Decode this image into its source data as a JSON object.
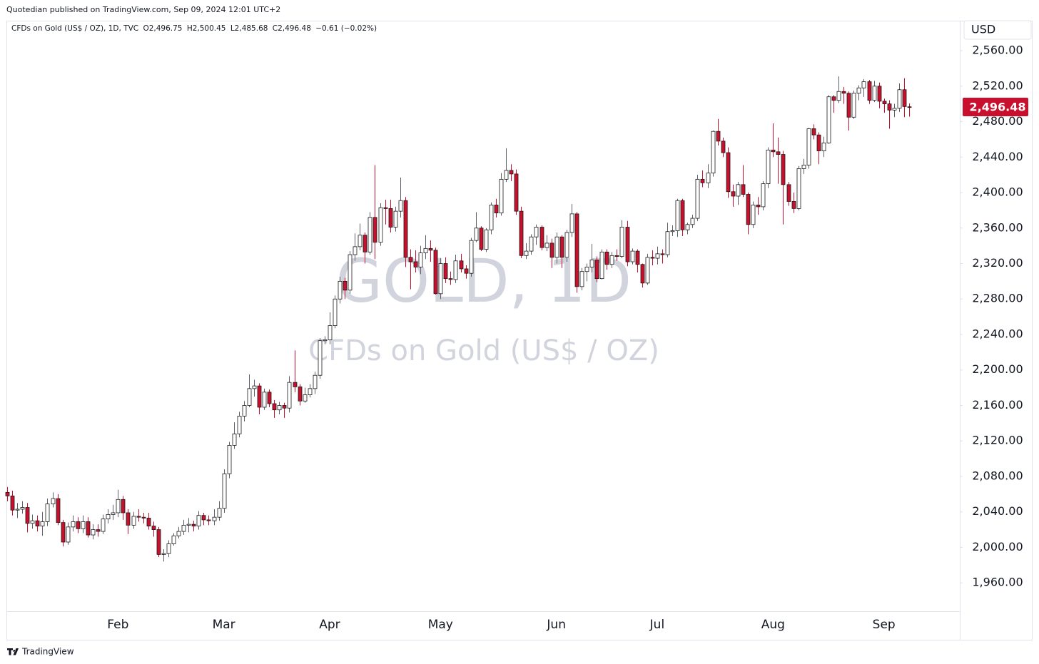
{
  "chart_data": {
    "type": "candlestick",
    "header": "Quotedian published on TradingView.com, Sep 09, 2024 12:01 UTC+2",
    "legend": {
      "symbol": "CFDs on Gold (US$ / OZ), 1D, TVC",
      "open": "O2,496.75",
      "high": "H2,500.45",
      "low": "L2,485.68",
      "close": "C2,496.48",
      "change": "−0.61 (−0.02%)"
    },
    "watermark": {
      "title": "GOLD, 1D",
      "subtitle": "CFDs on Gold (US$ / OZ)"
    },
    "currency": "USD",
    "last_price_label": "2,496.48",
    "footer": "TradingView",
    "up_color": "#ffffff",
    "down_color": "#c8102e",
    "border_color": "#1a1a1a",
    "wick_color": "#5d606b",
    "grid": false,
    "categories": [
      null,
      null,
      null,
      null,
      null,
      null,
      null,
      null,
      null,
      null,
      null,
      null,
      null,
      null,
      null,
      null,
      null,
      null,
      null,
      null,
      null,
      null,
      "Feb",
      null,
      null,
      null,
      null,
      null,
      null,
      null,
      null,
      null,
      null,
      null,
      null,
      null,
      null,
      null,
      null,
      null,
      null,
      null,
      null,
      "Mar",
      null,
      null,
      null,
      null,
      null,
      null,
      null,
      null,
      null,
      null,
      null,
      null,
      null,
      null,
      null,
      null,
      null,
      null,
      null,
      null,
      "Apr",
      null,
      null,
      null,
      null,
      null,
      null,
      null,
      null,
      null,
      null,
      null,
      null,
      null,
      null,
      null,
      null,
      null,
      null,
      null,
      null,
      null,
      "May",
      null,
      null,
      null,
      null,
      null,
      null,
      null,
      null,
      null,
      null,
      null,
      null,
      null,
      null,
      null,
      null,
      null,
      null,
      null,
      null,
      null,
      null,
      "Jun",
      null,
      null,
      null,
      null,
      null,
      null,
      null,
      null,
      null,
      null,
      null,
      null,
      null,
      null,
      null,
      null,
      null,
      null,
      null,
      "Jul",
      null,
      null,
      null,
      null,
      null,
      null,
      null,
      null,
      null,
      null,
      null,
      null,
      null,
      null,
      null,
      null,
      null,
      null,
      null,
      null,
      null,
      null,
      "Aug",
      null,
      null,
      null,
      null,
      null,
      null,
      null,
      null,
      null,
      null,
      null,
      null,
      null,
      null,
      null,
      null,
      null,
      null,
      null,
      null,
      null,
      "Sep",
      null,
      null,
      null,
      null,
      null
    ],
    "open": [
      2062,
      2058,
      2042,
      2043,
      2045,
      2027,
      2030,
      2024,
      2029,
      2049,
      2055,
      2028,
      2006,
      2023,
      2029,
      2021,
      2029,
      2014,
      2020,
      2018,
      2032,
      2037,
      2039,
      2054,
      2039,
      2025,
      2035,
      2034,
      2033,
      2024,
      2020,
      1992,
      1993,
      2004,
      2013,
      2018,
      2025,
      2026,
      2024,
      2036,
      2031,
      2030,
      2034,
      2044,
      2083,
      2115,
      2128,
      2148,
      2160,
      2179,
      2182,
      2158,
      2175,
      2162,
      2155,
      2160,
      2157,
      2186,
      2181,
      2165,
      2172,
      2179,
      2194,
      2233,
      2234,
      2250,
      2280,
      2300,
      2290,
      2330,
      2339,
      2352,
      2333,
      2372,
      2344,
      2383,
      2382,
      2361,
      2379,
      2391,
      2327,
      2322,
      2316,
      2332,
      2337,
      2335,
      2286,
      2320,
      2303,
      2302,
      2323,
      2314,
      2309,
      2346,
      2360,
      2336,
      2358,
      2386,
      2377,
      2415,
      2425,
      2421,
      2379,
      2329,
      2334,
      2350,
      2361,
      2338,
      2343,
      2327,
      2350,
      2327,
      2355,
      2376,
      2294,
      2311,
      2316,
      2324,
      2303,
      2333,
      2319,
      2329,
      2328,
      2361,
      2322,
      2334,
      2319,
      2298,
      2327,
      2326,
      2331,
      2330,
      2356,
      2357,
      2391,
      2358,
      2364,
      2371,
      2415,
      2411,
      2422,
      2469,
      2458,
      2445,
      2401,
      2396,
      2409,
      2398,
      2364,
      2386,
      2384,
      2410,
      2448,
      2446,
      2443,
      2409,
      2390,
      2382,
      2427,
      2431,
      2472,
      2465,
      2447,
      2456,
      2508,
      2504,
      2514,
      2512,
      2485,
      2512,
      2518,
      2525,
      2504,
      2520,
      2503,
      2500,
      2493,
      2495,
      2516,
      2496.75
    ],
    "high": [
      2068,
      2064,
      2050,
      2052,
      2050,
      2037,
      2036,
      2040,
      2055,
      2062,
      2060,
      2031,
      2028,
      2036,
      2034,
      2036,
      2034,
      2026,
      2026,
      2037,
      2043,
      2048,
      2065,
      2058,
      2043,
      2040,
      2043,
      2039,
      2039,
      2029,
      2023,
      1998,
      2008,
      2016,
      2023,
      2031,
      2033,
      2030,
      2041,
      2039,
      2036,
      2043,
      2052,
      2088,
      2119,
      2141,
      2153,
      2165,
      2195,
      2189,
      2185,
      2179,
      2178,
      2166,
      2164,
      2163,
      2193,
      2222,
      2184,
      2180,
      2184,
      2198,
      2236,
      2238,
      2265,
      2284,
      2305,
      2304,
      2334,
      2354,
      2365,
      2355,
      2378,
      2431,
      2388,
      2392,
      2392,
      2384,
      2417,
      2395,
      2336,
      2335,
      2340,
      2352,
      2346,
      2338,
      2326,
      2327,
      2311,
      2330,
      2331,
      2318,
      2349,
      2378,
      2362,
      2360,
      2389,
      2393,
      2422,
      2450,
      2432,
      2426,
      2384,
      2343,
      2353,
      2364,
      2363,
      2352,
      2348,
      2355,
      2352,
      2358,
      2387,
      2378,
      2315,
      2320,
      2342,
      2328,
      2336,
      2336,
      2333,
      2336,
      2369,
      2368,
      2337,
      2336,
      2320,
      2331,
      2335,
      2339,
      2336,
      2366,
      2363,
      2393,
      2393,
      2366,
      2375,
      2420,
      2425,
      2432,
      2470,
      2483,
      2462,
      2451,
      2409,
      2412,
      2431,
      2400,
      2390,
      2395,
      2413,
      2451,
      2478,
      2462,
      2447,
      2412,
      2400,
      2430,
      2438,
      2473,
      2477,
      2468,
      2463,
      2510,
      2510,
      2531,
      2519,
      2514,
      2515,
      2521,
      2528,
      2527,
      2526,
      2524,
      2506,
      2504,
      2500,
      2523,
      2529,
      2500.45
    ],
    "low": [
      2052,
      2036,
      2033,
      2038,
      2017,
      2021,
      2018,
      2013,
      2024,
      2045,
      2025,
      2001,
      2003,
      2018,
      2016,
      2016,
      2011,
      2009,
      2012,
      2015,
      2027,
      2031,
      2034,
      2031,
      2015,
      2021,
      2029,
      2027,
      2020,
      2012,
      1989,
      1984,
      1989,
      2002,
      2010,
      2014,
      2017,
      2018,
      2020,
      2025,
      2025,
      2025,
      2030,
      2039,
      2078,
      2111,
      2124,
      2142,
      2158,
      2170,
      2150,
      2155,
      2158,
      2146,
      2150,
      2146,
      2152,
      2175,
      2160,
      2163,
      2169,
      2173,
      2190,
      2229,
      2229,
      2247,
      2275,
      2280,
      2286,
      2323,
      2335,
      2320,
      2330,
      2325,
      2340,
      2364,
      2355,
      2356,
      2372,
      2316,
      2291,
      2310,
      2308,
      2325,
      2322,
      2285,
      2280,
      2298,
      2296,
      2298,
      2310,
      2303,
      2305,
      2344,
      2334,
      2333,
      2353,
      2372,
      2374,
      2412,
      2413,
      2375,
      2326,
      2325,
      2330,
      2341,
      2335,
      2334,
      2315,
      2320,
      2315,
      2322,
      2350,
      2287,
      2290,
      2300,
      2310,
      2299,
      2302,
      2313,
      2315,
      2323,
      2326,
      2317,
      2319,
      2310,
      2293,
      2296,
      2318,
      2319,
      2320,
      2327,
      2351,
      2350,
      2351,
      2353,
      2360,
      2368,
      2406,
      2405,
      2418,
      2453,
      2440,
      2394,
      2384,
      2386,
      2395,
      2353,
      2360,
      2375,
      2380,
      2405,
      2440,
      2410,
      2364,
      2385,
      2377,
      2380,
      2421,
      2427,
      2460,
      2432,
      2440,
      2455,
      2490,
      2501,
      2500,
      2470,
      2483,
      2504,
      2508,
      2500,
      2502,
      2495,
      2490,
      2472,
      2485,
      2491,
      2485,
      2485.68
    ],
    "close": [
      2058,
      2042,
      2043,
      2045,
      2027,
      2030,
      2024,
      2029,
      2049,
      2055,
      2028,
      2006,
      2023,
      2029,
      2021,
      2029,
      2014,
      2020,
      2018,
      2032,
      2037,
      2039,
      2054,
      2039,
      2025,
      2035,
      2034,
      2033,
      2024,
      2020,
      1992,
      1993,
      2004,
      2013,
      2018,
      2025,
      2026,
      2024,
      2036,
      2031,
      2030,
      2034,
      2044,
      2083,
      2115,
      2128,
      2148,
      2160,
      2179,
      2182,
      2158,
      2175,
      2162,
      2155,
      2160,
      2157,
      2186,
      2181,
      2165,
      2172,
      2179,
      2194,
      2233,
      2234,
      2250,
      2280,
      2300,
      2290,
      2330,
      2339,
      2352,
      2333,
      2372,
      2344,
      2383,
      2382,
      2361,
      2379,
      2391,
      2327,
      2322,
      2316,
      2332,
      2337,
      2335,
      2286,
      2320,
      2303,
      2302,
      2323,
      2314,
      2309,
      2346,
      2360,
      2336,
      2358,
      2386,
      2377,
      2415,
      2425,
      2421,
      2379,
      2329,
      2334,
      2350,
      2361,
      2338,
      2343,
      2327,
      2350,
      2327,
      2355,
      2376,
      2294,
      2311,
      2316,
      2324,
      2303,
      2333,
      2319,
      2329,
      2328,
      2361,
      2322,
      2334,
      2319,
      2298,
      2327,
      2326,
      2331,
      2330,
      2356,
      2357,
      2391,
      2358,
      2364,
      2371,
      2415,
      2411,
      2422,
      2469,
      2458,
      2445,
      2401,
      2396,
      2409,
      2398,
      2364,
      2386,
      2384,
      2410,
      2448,
      2446,
      2443,
      2409,
      2390,
      2382,
      2427,
      2431,
      2472,
      2465,
      2447,
      2456,
      2508,
      2504,
      2514,
      2512,
      2485,
      2512,
      2518,
      2525,
      2504,
      2520,
      2503,
      2500,
      2493,
      2495,
      2516,
      2497,
      2496.48
    ],
    "ylim": [
      1928,
      2593
    ],
    "yticks": [
      {
        "value": 1960,
        "label": "1,960.00"
      },
      {
        "value": 2000,
        "label": "2,000.00"
      },
      {
        "value": 2040,
        "label": "2,040.00"
      },
      {
        "value": 2080,
        "label": "2,080.00"
      },
      {
        "value": 2120,
        "label": "2,120.00"
      },
      {
        "value": 2160,
        "label": "2,160.00"
      },
      {
        "value": 2200,
        "label": "2,200.00"
      },
      {
        "value": 2240,
        "label": "2,240.00"
      },
      {
        "value": 2280,
        "label": "2,280.00"
      },
      {
        "value": 2320,
        "label": "2,320.00"
      },
      {
        "value": 2360,
        "label": "2,360.00"
      },
      {
        "value": 2400,
        "label": "2,400.00"
      },
      {
        "value": 2440,
        "label": "2,440.00"
      },
      {
        "value": 2480,
        "label": "2,480.00"
      },
      {
        "value": 2520,
        "label": "2,520.00"
      },
      {
        "value": 2560,
        "label": "2,560.00"
      }
    ]
  }
}
